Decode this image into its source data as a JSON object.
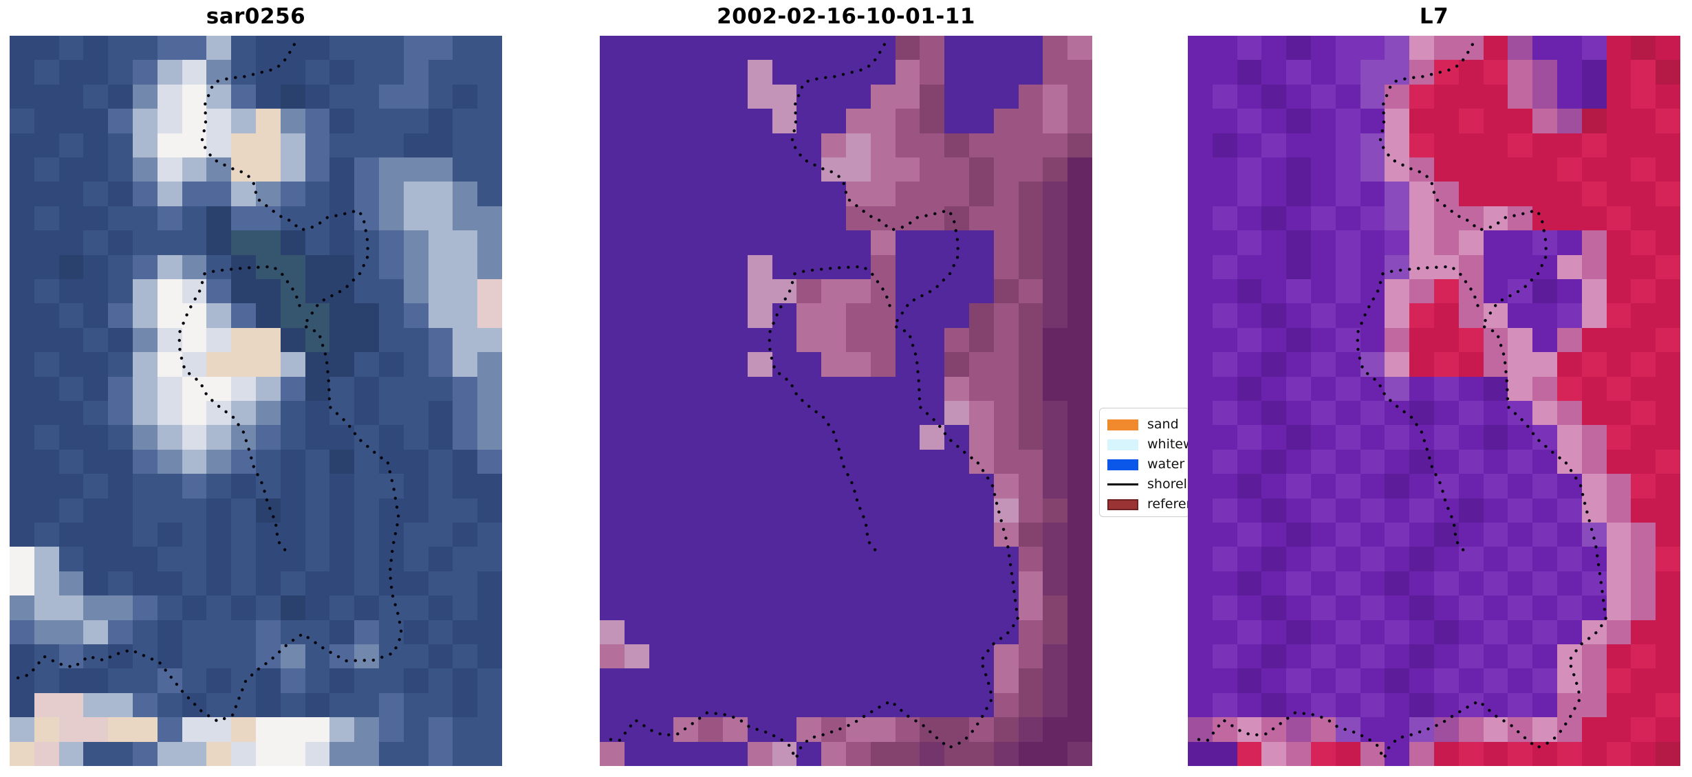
{
  "chart_data": {
    "type": "heatmap",
    "figure_kind": "coastal-satellite-image-triptych",
    "background": "#ffffff",
    "panels": [
      {
        "title": "sar0256",
        "cols": 20,
        "rows_count": 30,
        "palette": {
          "a": "#31497a",
          "b": "#2a416e",
          "c": "#3a5485",
          "d": "#50699a",
          "e": "#7288ad",
          "f": "#aab8d0",
          "g": "#d9dee9",
          "h": "#f4f3f2",
          "i": "#e9d7c3",
          "j": "#e5cccd",
          "k": "#36566f"
        },
        "rows": [
          "aacaccddfcaaacccddcc",
          "acaacdfgecaacaccdccc",
          "aaacaeghfdabaccddcac",
          "caaadfghgfiedacccacc",
          "aacacfhhgiifdcccaacc",
          "acaacegfeiifdadeeecc",
          "aaacadfddfedcadeffec",
          "acaaccdcbddccadeffee",
          "aaacacccbkkbcacdeffe",
          "aabacdfecbkkbbcdeffe",
          "acaacfhgdbbkbbcceffj",
          "aacadfhhfdbkkbbcdffj",
          "aaacaeghgiibkbbccdff",
          "acaacfhgiiifbbcacdfe",
          "aacadfghhgfdbcacccde",
          "aaacdfghgfecacaccade",
          "acaacefgfedcaacacade",
          "aacaadefedcacbcaacad",
          "aaacaccdcacacaccacaa",
          "aacaacccacbacacaacca",
          "acaaacacacaacacaccac",
          "hfcaaaccacaacacacacc",
          "hfeacaacacacaacaacca",
          "effeedcacacbacaccaca",
          "deefdcacccdccadcacaa",
          "acdcacacccdecdeccaca",
          "acaaccdcacadcaccacac",
          "ajjffdcaccacaccdccac",
          "fijjiidggihhhfedcdcc",
          "ijfccdffighhgeeccdcc"
        ],
        "shoreline_bottom": "bottom_sar"
      },
      {
        "title": "2002-02-16-10-01-11",
        "cols": 20,
        "rows_count": 30,
        "palette": {
          "p": "#54289d",
          "t": "#c493b8",
          "s": "#b56f9b",
          "r": "#9c5583",
          "u": "#84436f",
          "w": "#74356c",
          "v": "#662663"
        },
        "rows": [
          "ppppppppppppurpppprs",
          "pppppptpppppsrpppprr",
          "ppppppttpppssuppprsr",
          "ppppppptppssrupprrsr",
          "pppppppppstsrrurrrru",
          "pppppppppttssrrurruv",
          "ppppppppppssrrruruwv",
          "pppppppppprrrrurruwv",
          "pppppppppppsppppruwv",
          "pppppptpppprppppruwv",
          "ppppppttrssrppppurwv",
          "pppppptpssrrpppuruwv",
          "ppppppppssrrppruruvv",
          "pppppptppssrppurruvv",
          "ppppppppppppppsrruvv",
          "pppppppppppppptsruwv",
          "ppppppppppppptpsruwv",
          "pppppppppppppppsrrwv",
          "ppppppppppppppppsrwv",
          "pppppppppppppppptruv",
          "ppppppppppppppppsuwv",
          "ppppppppppppppppprwv",
          "pppppppppppppppppswv",
          "pppppppppppppppppsuv",
          "tppppppppppppppppruv",
          "stppppppppppppppsrwv",
          "ppppppppppppppppsuwv",
          "ppppppppppppppppruwv",
          "pppsrsppsrssruuruwvv",
          "spppppstpsruuwuuwvvw"
        ],
        "shoreline_bottom": "bottom_optical"
      },
      {
        "title": "L7",
        "cols": 20,
        "rows_count": 30,
        "palette": {
          "A": "#6b22ad",
          "B": "#5d1d9b",
          "C": "#7a32b8",
          "D": "#8a4bbd",
          "J": "#a04f9e",
          "H": "#c0689f",
          "I": "#d490bb",
          "E": "#c81a4e",
          "F": "#d62458",
          "G": "#b51a47"
        },
        "rows": [
          "AACABACCDIHHEJAACEGE",
          "AABACACDDHFEFHJABEFG",
          "ACABACADHFEEEHJABEFE",
          "AACABACAIEEFEEHJGEEF",
          "ABACAACDIFEEEFEEFEEE",
          "AACABACDIHEEEEEFEEFE",
          "AACABACADIHEEEEEFEEF",
          "ACABACACDIHHIHEEEFEE",
          "AACABACACIHIAACAHEFE",
          "ACAABACADIIHAAAIHEEF",
          "AABACACAIHFHACBAIEFE",
          "ACABACAAIFEHIAACIFEE",
          "AACABACAHEEFHIAHEEEF",
          "ACABACADIEFEHIIEFEFE",
          "AABACACADACABIHFEFEE",
          "ACABACACABACACIHEEFE",
          "AACABACACACABACIHFEE",
          "ACABACACABACACAIHEEF",
          "AABACACABACACACAIHFE",
          "ACABACACACABACACIHEE",
          "AACABACACABACACADIHE",
          "ACABACACABACACACAIHF",
          "AABACACABACACACACIHE",
          "ACABACACABACACACAIHE",
          "AACABACACABACACAIHEE",
          "ACABACACABACACAIHEFE",
          "AABACACABACACACIHFEE",
          "ACABACACABACACAHHEEF",
          "JHIHJHDAADJHIHIHEEFE",
          "BBFIHFEHAHEFEFEFEFEG"
        ],
        "shoreline_bottom": "bottom_optical"
      }
    ],
    "legend": {
      "position": "between-panel-2-and-3, clipped by panel 3",
      "entries": [
        {
          "label": "sand",
          "swatch": "patch",
          "color": "#f1892d"
        },
        {
          "label": "whitewater",
          "swatch": "patch",
          "color": "#d6f5fd"
        },
        {
          "label": "water",
          "swatch": "patch",
          "color": "#0b57ea"
        },
        {
          "label": "shoreline",
          "swatch": "line",
          "color": "#000000"
        },
        {
          "label": "reference",
          "swatch": "patch",
          "color": "#9a3333",
          "edge_color": "#6e2121"
        }
      ]
    },
    "shoreline": {
      "color": "#06060f",
      "dot_size": 4.4,
      "dot_gap": 13,
      "segments_common": [
        [
          [
            0.578,
            0.012
          ],
          [
            0.566,
            0.026
          ],
          [
            0.553,
            0.039
          ],
          [
            0.535,
            0.046
          ],
          [
            0.506,
            0.051
          ],
          [
            0.476,
            0.056
          ],
          [
            0.447,
            0.058
          ],
          [
            0.418,
            0.063
          ],
          [
            0.411,
            0.07
          ],
          [
            0.397,
            0.093
          ],
          [
            0.398,
            0.12
          ],
          [
            0.39,
            0.146
          ],
          [
            0.413,
            0.169
          ],
          [
            0.448,
            0.181
          ],
          [
            0.478,
            0.188
          ],
          [
            0.494,
            0.198
          ],
          [
            0.503,
            0.223
          ],
          [
            0.537,
            0.241
          ],
          [
            0.554,
            0.249
          ],
          [
            0.569,
            0.253
          ],
          [
            0.592,
            0.266
          ],
          [
            0.621,
            0.261
          ],
          [
            0.645,
            0.249
          ],
          [
            0.679,
            0.244
          ],
          [
            0.708,
            0.239
          ],
          [
            0.718,
            0.249
          ],
          [
            0.726,
            0.277
          ],
          [
            0.728,
            0.301
          ],
          [
            0.712,
            0.325
          ],
          [
            0.68,
            0.347
          ],
          [
            0.629,
            0.365
          ],
          [
            0.597,
            0.397
          ],
          [
            0.628,
            0.407
          ],
          [
            0.643,
            0.44
          ],
          [
            0.648,
            0.475
          ],
          [
            0.65,
            0.508
          ],
          [
            0.685,
            0.53
          ],
          [
            0.709,
            0.552
          ],
          [
            0.74,
            0.57
          ],
          [
            0.768,
            0.585
          ]
        ],
        [
          [
            0.396,
            0.326
          ],
          [
            0.417,
            0.322
          ],
          [
            0.447,
            0.32
          ],
          [
            0.477,
            0.318
          ],
          [
            0.506,
            0.317
          ],
          [
            0.535,
            0.316
          ],
          [
            0.554,
            0.327
          ],
          [
            0.58,
            0.352
          ],
          [
            0.59,
            0.372
          ]
        ],
        [
          [
            0.396,
            0.326
          ],
          [
            0.387,
            0.348
          ],
          [
            0.363,
            0.377
          ],
          [
            0.344,
            0.408
          ],
          [
            0.346,
            0.434
          ],
          [
            0.356,
            0.458
          ],
          [
            0.388,
            0.475
          ],
          [
            0.396,
            0.488
          ],
          [
            0.416,
            0.503
          ],
          [
            0.455,
            0.523
          ],
          [
            0.475,
            0.543
          ],
          [
            0.486,
            0.567
          ],
          [
            0.496,
            0.591
          ],
          [
            0.514,
            0.615
          ],
          [
            0.524,
            0.64
          ],
          [
            0.54,
            0.666
          ],
          [
            0.545,
            0.692
          ],
          [
            0.566,
            0.71
          ]
        ]
      ],
      "bottom_sar": [
        [
          [
            0.768,
            0.585
          ],
          [
            0.78,
            0.62
          ],
          [
            0.79,
            0.66
          ],
          [
            0.778,
            0.7
          ],
          [
            0.772,
            0.735
          ],
          [
            0.777,
            0.765
          ],
          [
            0.79,
            0.795
          ],
          [
            0.796,
            0.82
          ],
          [
            0.78,
            0.845
          ],
          [
            0.74,
            0.855
          ],
          [
            0.683,
            0.856
          ],
          [
            0.64,
            0.84
          ],
          [
            0.595,
            0.819
          ],
          [
            0.566,
            0.832
          ],
          [
            0.53,
            0.855
          ],
          [
            0.5,
            0.87
          ],
          [
            0.479,
            0.884
          ],
          [
            0.453,
            0.93
          ],
          [
            0.423,
            0.939
          ],
          [
            0.391,
            0.926
          ],
          [
            0.352,
            0.899
          ],
          [
            0.304,
            0.858
          ],
          [
            0.246,
            0.841
          ],
          [
            0.216,
            0.847
          ],
          [
            0.19,
            0.855
          ],
          [
            0.16,
            0.85
          ],
          [
            0.13,
            0.865
          ],
          [
            0.1,
            0.86
          ],
          [
            0.07,
            0.85
          ],
          [
            0.04,
            0.875
          ],
          [
            0.013,
            0.88
          ]
        ]
      ],
      "bottom_optical": [
        [
          [
            0.768,
            0.585
          ],
          [
            0.797,
            0.615
          ],
          [
            0.807,
            0.643
          ],
          [
            0.828,
            0.696
          ],
          [
            0.839,
            0.748
          ],
          [
            0.849,
            0.8
          ],
          [
            0.827,
            0.819
          ],
          [
            0.797,
            0.834
          ],
          [
            0.774,
            0.856
          ],
          [
            0.788,
            0.883
          ],
          [
            0.797,
            0.907
          ],
          [
            0.778,
            0.931
          ],
          [
            0.76,
            0.95
          ],
          [
            0.739,
            0.966
          ],
          [
            0.709,
            0.975
          ],
          [
            0.682,
            0.96
          ],
          [
            0.656,
            0.944
          ],
          [
            0.624,
            0.931
          ],
          [
            0.591,
            0.911
          ],
          [
            0.566,
            0.92
          ],
          [
            0.539,
            0.931
          ],
          [
            0.514,
            0.942
          ],
          [
            0.485,
            0.95
          ],
          [
            0.455,
            0.957
          ],
          [
            0.426,
            0.962
          ],
          [
            0.408,
            0.975
          ],
          [
            0.398,
            0.99
          ],
          [
            0.385,
            0.972
          ],
          [
            0.365,
            0.962
          ],
          [
            0.335,
            0.953
          ],
          [
            0.305,
            0.947
          ],
          [
            0.281,
            0.935
          ],
          [
            0.25,
            0.929
          ],
          [
            0.218,
            0.927
          ],
          [
            0.188,
            0.942
          ],
          [
            0.159,
            0.956
          ],
          [
            0.13,
            0.958
          ],
          [
            0.104,
            0.951
          ],
          [
            0.072,
            0.937
          ],
          [
            0.04,
            0.965
          ],
          [
            0.012,
            0.963
          ]
        ]
      ]
    }
  }
}
